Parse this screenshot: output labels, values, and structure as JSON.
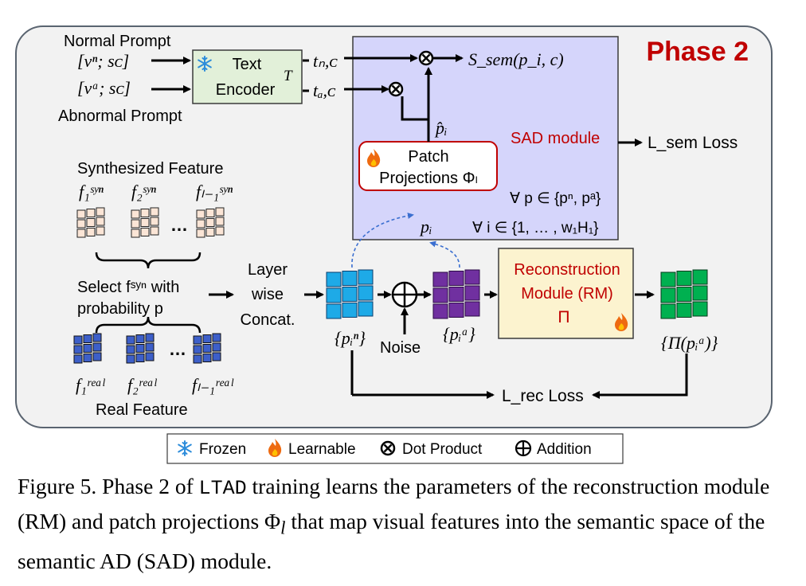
{
  "phase_title": "Phase 2",
  "text_encoder": {
    "line1": "Text",
    "line2": "Encoder",
    "output_symbol": "T",
    "normal_prompt": {
      "label": "Normal Prompt",
      "input": "[vⁿ; sᴄ]",
      "token": "tₙ,ᴄ"
    },
    "abnormal_prompt": {
      "label": "Abnormal Prompt",
      "input": "[vᵃ; sᴄ]",
      "token": "tₐ,ᴄ"
    }
  },
  "sad_module": {
    "label": "SAD module",
    "score": "S_sem(p_i, c)",
    "projected_patch": "p̂ᵢ",
    "patch_proj_line1": "Patch",
    "patch_proj_line2": "Projections Φₗ",
    "patch_input": "pᵢ",
    "forall_p": "∀ p ∈ {pⁿ, pᵃ}",
    "forall_i": "∀ i ∈ {1, … , w₁H₁}",
    "loss_label": "L_sem Loss"
  },
  "synthesized": {
    "title": "Synthesized Feature",
    "features": [
      "f₁ˢʸⁿ",
      "f₂ˢʸⁿ",
      "fₗ₋₁ˢʸⁿ"
    ],
    "ellipsis": "…"
  },
  "real": {
    "title": "Real Feature",
    "features": [
      "f₁ʳᵉᵃˡ",
      "f₂ʳᵉᵃˡ",
      "fₗ₋₁ʳᵉᵃˡ"
    ],
    "ellipsis": "…"
  },
  "select": {
    "line1": "Select fˢʸⁿ with",
    "line2": "probability p"
  },
  "concat": {
    "line1": "Layer",
    "line2": "wise",
    "line3": "Concat."
  },
  "normal_patches": "{pᵢⁿ}",
  "noise": "Noise",
  "abnormal_patches": "{pᵢᵃ}",
  "rm": {
    "line1": "Reconstruction",
    "line2": "Module (RM)",
    "line3": "Π"
  },
  "reconstructed": "{Π(pᵢᵃ)}",
  "rec_loss": "L_rec Loss",
  "legend": {
    "frozen": "Frozen",
    "learnable": "Learnable",
    "dot": "Dot Product",
    "add": "Addition"
  },
  "caption": {
    "prefix": "Figure 5.  Phase 2 of ",
    "code": "LTAD",
    "rest": " training learns the parameters of the reconstruction module (RM) and patch projections Φ",
    "sub": "l",
    "end": " that map visual features into the semantic space of the semantic AD (SAD) module."
  },
  "colors": {
    "panel": "#f2f2f2",
    "sad_fill": "#d5d5fb",
    "encoder_fill": "#e2f0d9",
    "rm_fill": "#fcf3cf",
    "phase_red": "#c00000",
    "synth_fill": "#fbe5d6",
    "real_fill": "#3d5fc9",
    "normal_fill": "#1eaae7",
    "abnormal_fill": "#7030a0",
    "recon_fill": "#00b050"
  }
}
